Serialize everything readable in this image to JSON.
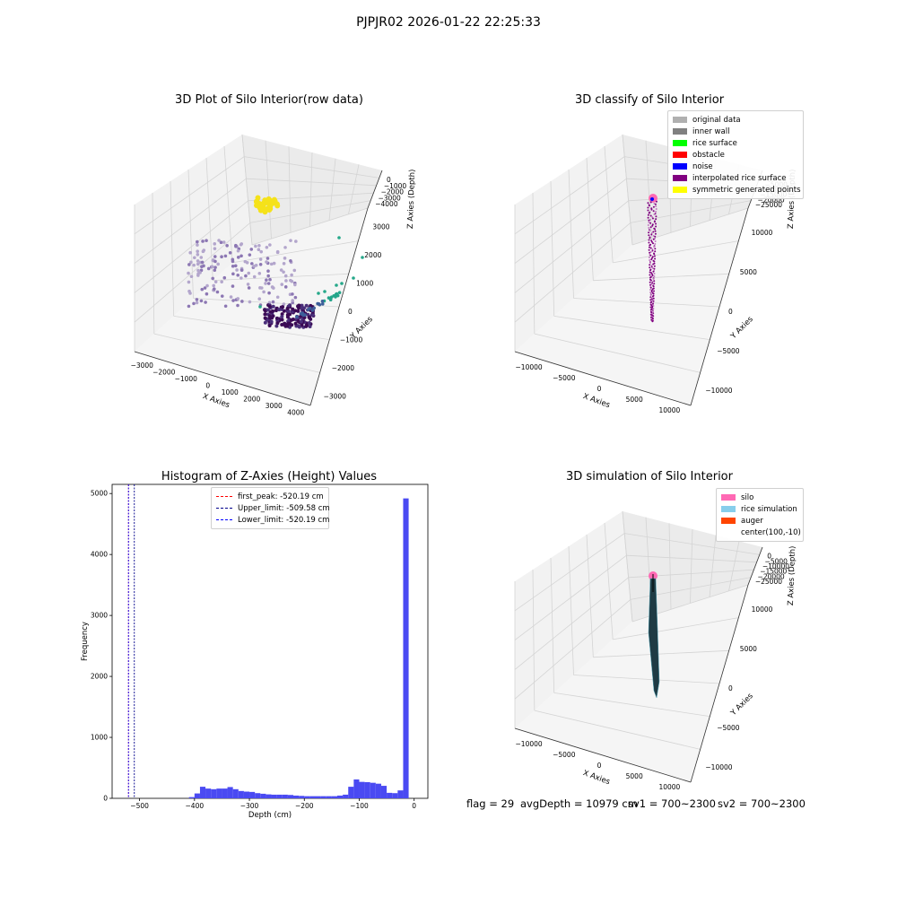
{
  "suptitle": "PJPJR02 2026-01-22 22:25:33",
  "panels": {
    "raw": {
      "title": "3D Plot of Silo Interior(row data)",
      "xlabel": "X Axies",
      "ylabel": "Y Axies",
      "zlabel": "Z Axies (Depth)",
      "xticks": [
        "−3000",
        "−2000",
        "−1000",
        "0",
        "1000",
        "2000",
        "3000",
        "4000"
      ],
      "yticks": [
        "3000",
        "2000",
        "1000",
        "0",
        "−1000",
        "−2000",
        "−3000"
      ],
      "zticks": [
        "0",
        "−1000",
        "−2000",
        "−3000",
        "−4000"
      ]
    },
    "classify": {
      "title": "3D classify of Silo Interior",
      "xlabel": "X Axies",
      "ylabel": "Y Axies",
      "zlabel": "Z Axies (Depth)",
      "xticks": [
        "−10000",
        "−5000",
        "0",
        "5000",
        "10000"
      ],
      "yticks": [
        "10000",
        "5000",
        "0",
        "−5000",
        "−10000"
      ],
      "zticks": [
        "0",
        "−5000",
        "−10000",
        "−15000",
        "−20000",
        "−25000"
      ],
      "legend": [
        {
          "label": "original data",
          "color": "#b0b0b0"
        },
        {
          "label": "inner wall",
          "color": "#808080"
        },
        {
          "label": "rice surface",
          "color": "#00ff00"
        },
        {
          "label": "obstacle",
          "color": "#ff0000"
        },
        {
          "label": "noise",
          "color": "#0000ff"
        },
        {
          "label": "interpolated rice surface",
          "color": "#800080"
        },
        {
          "label": "symmetric generated points",
          "color": "#ffff00"
        }
      ]
    },
    "histogram": {
      "title": "Histogram of Z-Axies (Height) Values",
      "xlabel": "Depth (cm)",
      "ylabel": "Frequency",
      "legend": [
        {
          "label": "first_peak: -520.19 cm",
          "color": "#ff0000"
        },
        {
          "label": "Upper_limit: -509.58 cm",
          "color": "#00008b"
        },
        {
          "label": "Lower_limit: -520.19 cm",
          "color": "#0000ff"
        }
      ]
    },
    "simulation": {
      "title": "3D simulation of Silo Interior",
      "xlabel": "X Axies",
      "ylabel": "Y Axies",
      "zlabel": "Z Axies (Depth)",
      "xticks": [
        "−10000",
        "−5000",
        "0",
        "5000",
        "10000"
      ],
      "yticks": [
        "10000",
        "5000",
        "0",
        "−5000",
        "−10000"
      ],
      "zticks": [
        "0",
        "−5000",
        "−10000",
        "−15000",
        "−20000",
        "−25000"
      ],
      "legend": [
        {
          "label": "silo",
          "color": "#ff69b4"
        },
        {
          "label": "rice simulation",
          "color": "#87ceeb"
        },
        {
          "label": "auger",
          "color": "#ff4500"
        },
        {
          "label": "center(100,-10)",
          "color": ""
        }
      ]
    }
  },
  "footer": {
    "flag": "flag = 29",
    "avg_depth": "avgDepth = 10979 cm",
    "sv1": "sv1 = 700~2300",
    "sv2": "sv2 = 700~2300"
  },
  "chart_data": [
    {
      "type": "scatter",
      "title": "3D Plot of Silo Interior(row data)",
      "xlabel": "X Axies",
      "ylabel": "Y Axies",
      "zlabel": "Z Axies (Depth)",
      "xlim": [
        -3500,
        4300
      ],
      "ylim": [
        -3500,
        3500
      ],
      "zlim": [
        -4600,
        0
      ]
    },
    {
      "type": "scatter",
      "title": "3D classify of Silo Interior",
      "xlabel": "X Axies",
      "ylabel": "Y Axies",
      "zlabel": "Z Axies (Depth)",
      "xlim": [
        -12500,
        12500
      ],
      "ylim": [
        -12500,
        12500
      ],
      "zlim": [
        -28000,
        2000
      ]
    },
    {
      "type": "bar",
      "title": "Histogram of Z-Axies (Height) Values",
      "xlabel": "Depth (cm)",
      "ylabel": "Frequency",
      "xlim": [
        -550,
        25
      ],
      "ylim": [
        0,
        5150
      ],
      "xticks": [
        -500,
        -400,
        -300,
        -200,
        -100,
        0
      ],
      "yticks": [
        0,
        1000,
        2000,
        3000,
        4000,
        5000
      ],
      "bin_width": 10,
      "bins": [
        {
          "x": -410,
          "count": 20
        },
        {
          "x": -400,
          "count": 80
        },
        {
          "x": -390,
          "count": 190
        },
        {
          "x": -380,
          "count": 160
        },
        {
          "x": -370,
          "count": 150
        },
        {
          "x": -360,
          "count": 160
        },
        {
          "x": -350,
          "count": 160
        },
        {
          "x": -340,
          "count": 185
        },
        {
          "x": -330,
          "count": 150
        },
        {
          "x": -320,
          "count": 120
        },
        {
          "x": -310,
          "count": 110
        },
        {
          "x": -300,
          "count": 105
        },
        {
          "x": -290,
          "count": 85
        },
        {
          "x": -280,
          "count": 75
        },
        {
          "x": -270,
          "count": 65
        },
        {
          "x": -260,
          "count": 60
        },
        {
          "x": -250,
          "count": 60
        },
        {
          "x": -240,
          "count": 60
        },
        {
          "x": -230,
          "count": 55
        },
        {
          "x": -220,
          "count": 45
        },
        {
          "x": -210,
          "count": 40
        },
        {
          "x": -200,
          "count": 35
        },
        {
          "x": -190,
          "count": 35
        },
        {
          "x": -180,
          "count": 35
        },
        {
          "x": -170,
          "count": 35
        },
        {
          "x": -160,
          "count": 35
        },
        {
          "x": -150,
          "count": 35
        },
        {
          "x": -140,
          "count": 45
        },
        {
          "x": -130,
          "count": 60
        },
        {
          "x": -120,
          "count": 190
        },
        {
          "x": -110,
          "count": 310
        },
        {
          "x": -100,
          "count": 270
        },
        {
          "x": -90,
          "count": 265
        },
        {
          "x": -80,
          "count": 255
        },
        {
          "x": -70,
          "count": 240
        },
        {
          "x": -60,
          "count": 205
        },
        {
          "x": -50,
          "count": 90
        },
        {
          "x": -40,
          "count": 85
        },
        {
          "x": -30,
          "count": 130
        },
        {
          "x": -20,
          "count": 4920
        }
      ],
      "vlines": [
        {
          "name": "first_peak",
          "x": -520.19,
          "color": "#ff0000"
        },
        {
          "name": "Upper_limit",
          "x": -509.58,
          "color": "#00008b"
        },
        {
          "name": "Lower_limit",
          "x": -520.19,
          "color": "#0000ff"
        }
      ]
    },
    {
      "type": "area",
      "title": "3D simulation of Silo Interior",
      "xlabel": "X Axies",
      "ylabel": "Y Axies",
      "zlabel": "Z Axies (Depth)",
      "xlim": [
        -12500,
        12500
      ],
      "ylim": [
        -12500,
        12500
      ],
      "zlim": [
        -28000,
        2000
      ]
    }
  ]
}
